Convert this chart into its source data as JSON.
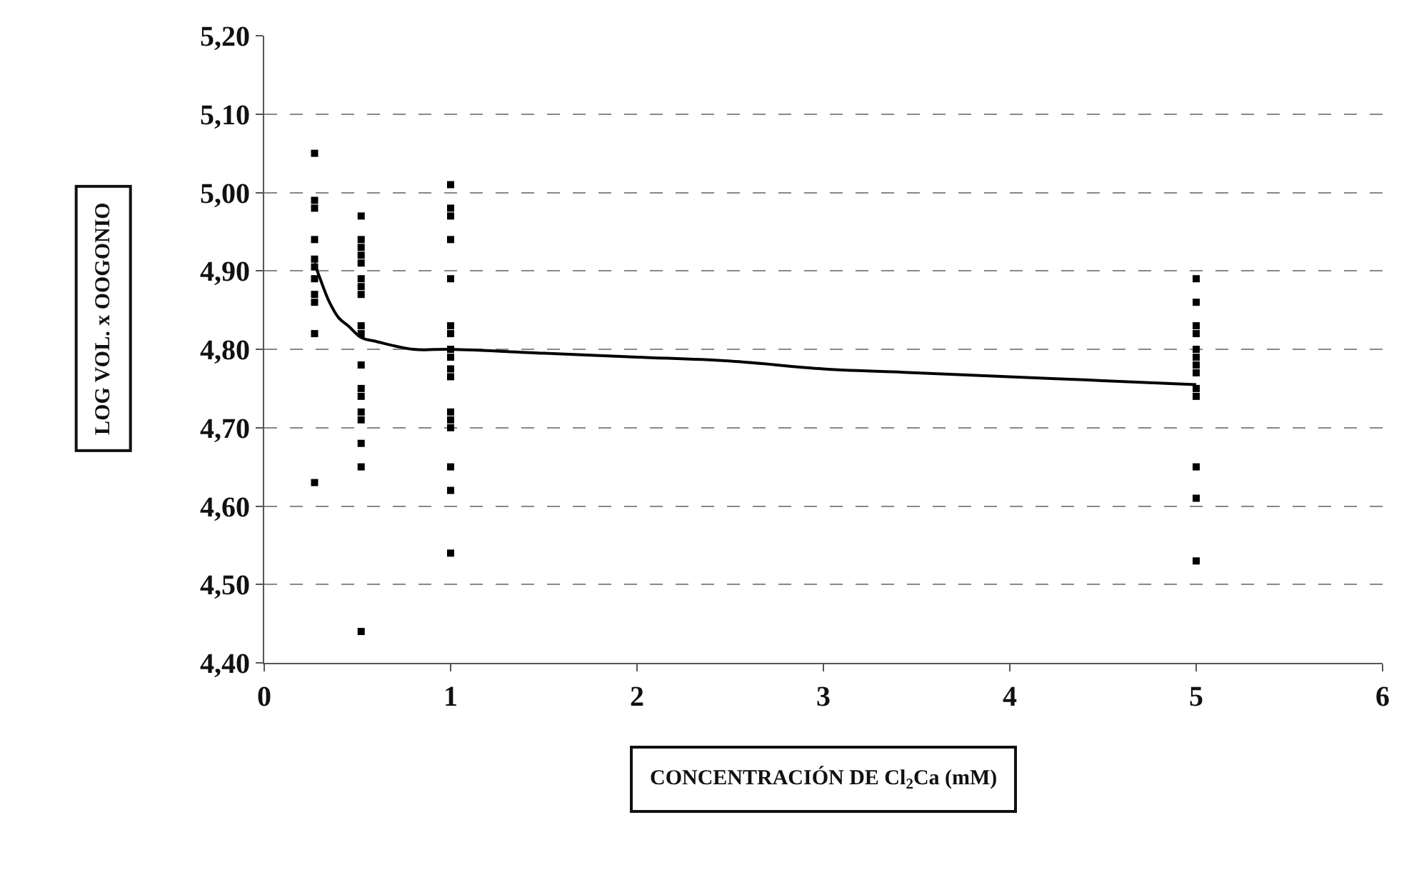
{
  "chart_data": {
    "type": "scatter",
    "xlabel": "CONCENTRACIÓN DE Cl$_{2}$Ca (mM)",
    "ylabel": "LOG VOL. x OOGONIO",
    "xlim": [
      0,
      6
    ],
    "xticks": [
      0,
      1,
      2,
      3,
      4,
      5,
      6
    ],
    "ylim": [
      4.4,
      5.2
    ],
    "yticks": [
      {
        "value": 4.4,
        "label": "4,40"
      },
      {
        "value": 4.5,
        "label": "4,50"
      },
      {
        "value": 4.6,
        "label": "4,60"
      },
      {
        "value": 4.7,
        "label": "4,70"
      },
      {
        "value": 4.8,
        "label": "4,80"
      },
      {
        "value": 4.9,
        "label": "4,90"
      },
      {
        "value": 5.0,
        "label": "5,00"
      },
      {
        "value": 5.1,
        "label": "5,10"
      },
      {
        "value": 5.2,
        "label": "5,20"
      }
    ],
    "grid": "y",
    "series": [
      {
        "marker": "square",
        "color": "#000000",
        "x": [
          0.27,
          0.27,
          0.27,
          0.27,
          0.27,
          0.27,
          0.27,
          0.27,
          0.27,
          0.27,
          0.27
        ],
        "values": [
          5.05,
          4.99,
          4.98,
          4.94,
          4.915,
          4.905,
          4.89,
          4.87,
          4.86,
          4.82,
          4.63
        ]
      },
      {
        "marker": "square",
        "color": "#000000",
        "x": [
          0.52,
          0.52,
          0.52,
          0.52,
          0.52,
          0.52,
          0.52,
          0.52,
          0.52,
          0.52,
          0.52,
          0.52,
          0.52,
          0.52,
          0.52,
          0.52,
          0.52,
          0.52
        ],
        "values": [
          4.97,
          4.94,
          4.93,
          4.92,
          4.91,
          4.89,
          4.88,
          4.87,
          4.83,
          4.82,
          4.78,
          4.75,
          4.74,
          4.72,
          4.71,
          4.68,
          4.65,
          4.44
        ]
      },
      {
        "marker": "square",
        "color": "#000000",
        "x": [
          1,
          1,
          1,
          1,
          1,
          1,
          1,
          1,
          1,
          1,
          1,
          1,
          1,
          1,
          1,
          1,
          1
        ],
        "values": [
          5.01,
          4.98,
          4.97,
          4.94,
          4.89,
          4.83,
          4.82,
          4.8,
          4.79,
          4.775,
          4.765,
          4.72,
          4.71,
          4.7,
          4.65,
          4.62,
          4.54
        ]
      },
      {
        "marker": "square",
        "color": "#000000",
        "x": [
          5,
          5,
          5,
          5,
          5,
          5,
          5,
          5,
          5,
          5,
          5,
          5,
          5
        ],
        "values": [
          4.89,
          4.86,
          4.83,
          4.82,
          4.8,
          4.79,
          4.78,
          4.77,
          4.75,
          4.74,
          4.65,
          4.61,
          4.53
        ]
      },
      {
        "type": "line",
        "color": "#000000",
        "x": [
          0.27,
          0.3,
          0.35,
          0.4,
          0.45,
          0.52,
          0.6,
          0.8,
          1,
          1.5,
          2,
          2.5,
          3,
          3.5,
          4,
          4.5,
          5
        ],
        "values": [
          4.91,
          4.89,
          4.86,
          4.84,
          4.83,
          4.815,
          4.81,
          4.8,
          4.8,
          4.795,
          4.79,
          4.785,
          4.775,
          4.77,
          4.765,
          4.76,
          4.755
        ]
      }
    ]
  }
}
